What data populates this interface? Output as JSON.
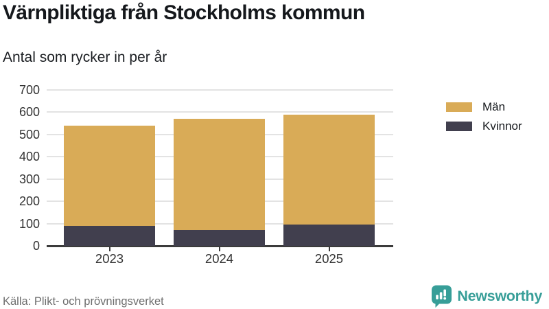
{
  "header": {
    "title": "Värnpliktiga från Stockholms kommun",
    "subtitle": "Antal som rycker in per år"
  },
  "chart_data": {
    "type": "bar",
    "stacked": true,
    "title": "Värnpliktiga från Stockholms kommun",
    "subtitle": "Antal som rycker in per år",
    "categories": [
      "2023",
      "2024",
      "2025"
    ],
    "series": [
      {
        "name": "Män",
        "color": "#d9ab57",
        "values": [
          450,
          500,
          495
        ]
      },
      {
        "name": "Kvinnor",
        "color": "#413f4e",
        "values": [
          90,
          70,
          95
        ]
      }
    ],
    "totals": [
      540,
      570,
      590
    ],
    "xlabel": "",
    "ylabel": "",
    "ylim": [
      0,
      700
    ],
    "yticks": [
      0,
      100,
      200,
      300,
      400,
      500,
      600,
      700
    ],
    "grid": true,
    "legend_position": "right"
  },
  "footer": {
    "source": "Källa: Plikt- och prövningsverket",
    "brand": "Newsworthy"
  },
  "colors": {
    "men": "#d9ab57",
    "women": "#413f4e",
    "brand_teal": "#379e98",
    "grid": "#e3e3e3",
    "axis": "#3b3b3b",
    "tick_text": "#333333",
    "text_dark": "#15181c",
    "text_muted": "#6e6e6e"
  }
}
